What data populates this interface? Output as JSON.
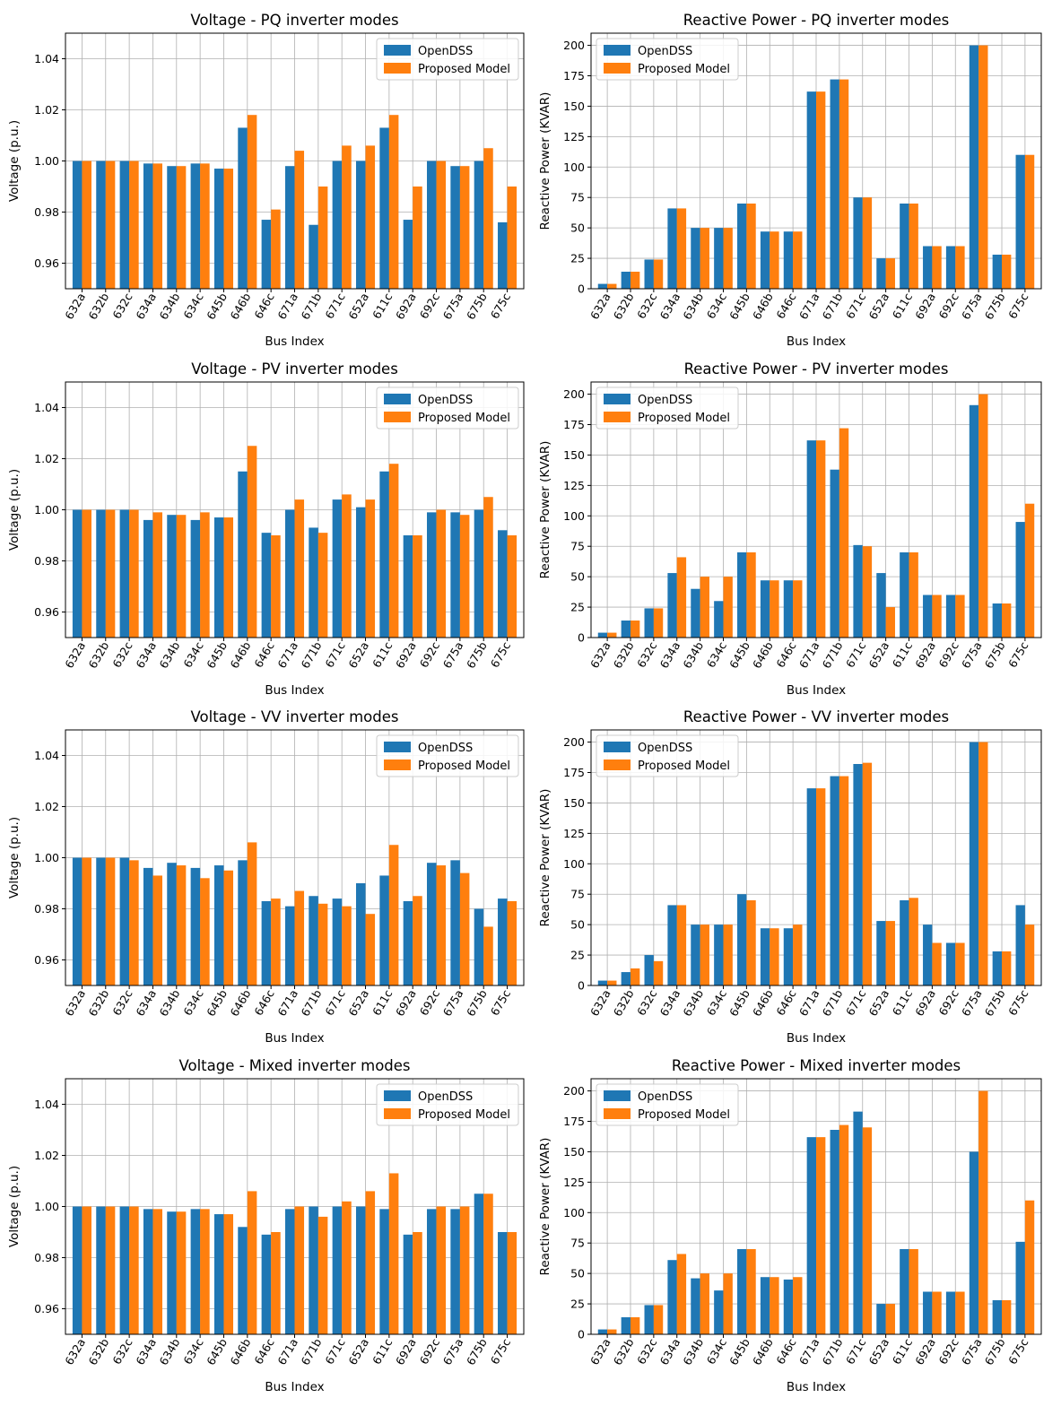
{
  "colors": {
    "opendss": "#1f77b4",
    "proposed": "#ff7f0e"
  },
  "chart_data": [
    {
      "type": "bar",
      "title": "Voltage - PQ inverter modes",
      "xlabel": "Bus Index",
      "ylabel": "Voltage (p.u.)",
      "ylim": [
        0.95,
        1.05
      ],
      "yticks": [
        "0.96",
        "0.98",
        "1.00",
        "1.02",
        "1.04"
      ],
      "grid": true,
      "legend": "upper right",
      "categories": [
        "632a",
        "632b",
        "632c",
        "634a",
        "634b",
        "634c",
        "645b",
        "646b",
        "646c",
        "671a",
        "671b",
        "671c",
        "652a",
        "611c",
        "692a",
        "692c",
        "675a",
        "675b",
        "675c"
      ],
      "series": [
        {
          "name": "OpenDSS",
          "values": [
            1.0,
            1.0,
            1.0,
            0.999,
            0.998,
            0.999,
            0.997,
            1.013,
            0.977,
            0.998,
            0.975,
            1.0,
            1.0,
            1.013,
            0.977,
            1.0,
            0.998,
            1.0,
            0.976
          ]
        },
        {
          "name": "Proposed Model",
          "values": [
            1.0,
            1.0,
            1.0,
            0.999,
            0.998,
            0.999,
            0.997,
            1.018,
            0.981,
            1.004,
            0.99,
            1.006,
            1.006,
            1.018,
            0.99,
            1.0,
            0.998,
            1.005,
            0.99
          ]
        }
      ]
    },
    {
      "type": "bar",
      "title": "Reactive Power - PQ inverter modes",
      "xlabel": "Bus Index",
      "ylabel": "Reactive Power (KVAR)",
      "ylim": [
        0,
        210
      ],
      "yticks": [
        "0",
        "25",
        "50",
        "75",
        "100",
        "125",
        "150",
        "175",
        "200"
      ],
      "grid": true,
      "legend": "upper left",
      "categories": [
        "632a",
        "632b",
        "632c",
        "634a",
        "634b",
        "634c",
        "645b",
        "646b",
        "646c",
        "671a",
        "671b",
        "671c",
        "652a",
        "611c",
        "692a",
        "692c",
        "675a",
        "675b",
        "675c"
      ],
      "series": [
        {
          "name": "OpenDSS",
          "values": [
            4,
            14,
            24,
            66,
            50,
            50,
            70,
            47,
            47,
            162,
            172,
            75,
            25,
            70,
            35,
            35,
            200,
            28,
            110
          ]
        },
        {
          "name": "Proposed Model",
          "values": [
            4,
            14,
            24,
            66,
            50,
            50,
            70,
            47,
            47,
            162,
            172,
            75,
            25,
            70,
            35,
            35,
            200,
            28,
            110
          ]
        }
      ]
    },
    {
      "type": "bar",
      "title": "Voltage - PV inverter modes",
      "xlabel": "Bus Index",
      "ylabel": "Voltage (p.u.)",
      "ylim": [
        0.95,
        1.05
      ],
      "yticks": [
        "0.96",
        "0.98",
        "1.00",
        "1.02",
        "1.04"
      ],
      "grid": true,
      "legend": "upper right",
      "categories": [
        "632a",
        "632b",
        "632c",
        "634a",
        "634b",
        "634c",
        "645b",
        "646b",
        "646c",
        "671a",
        "671b",
        "671c",
        "652a",
        "611c",
        "692a",
        "692c",
        "675a",
        "675b",
        "675c"
      ],
      "series": [
        {
          "name": "OpenDSS",
          "values": [
            1.0,
            1.0,
            1.0,
            0.996,
            0.998,
            0.996,
            0.997,
            1.015,
            0.991,
            1.0,
            0.993,
            1.004,
            1.001,
            1.015,
            0.99,
            0.999,
            0.999,
            1.0,
            0.992
          ]
        },
        {
          "name": "Proposed Model",
          "values": [
            1.0,
            1.0,
            1.0,
            0.999,
            0.998,
            0.999,
            0.997,
            1.025,
            0.99,
            1.004,
            0.991,
            1.006,
            1.004,
            1.018,
            0.99,
            1.0,
            0.998,
            1.005,
            0.99
          ]
        }
      ]
    },
    {
      "type": "bar",
      "title": "Reactive Power - PV inverter modes",
      "xlabel": "Bus Index",
      "ylabel": "Reactive Power (KVAR)",
      "ylim": [
        0,
        210
      ],
      "yticks": [
        "0",
        "25",
        "50",
        "75",
        "100",
        "125",
        "150",
        "175",
        "200"
      ],
      "grid": true,
      "legend": "upper left",
      "categories": [
        "632a",
        "632b",
        "632c",
        "634a",
        "634b",
        "634c",
        "645b",
        "646b",
        "646c",
        "671a",
        "671b",
        "671c",
        "652a",
        "611c",
        "692a",
        "692c",
        "675a",
        "675b",
        "675c"
      ],
      "series": [
        {
          "name": "OpenDSS",
          "values": [
            4,
            14,
            24,
            53,
            40,
            30,
            70,
            47,
            47,
            162,
            138,
            76,
            53,
            70,
            35,
            35,
            191,
            28,
            95
          ]
        },
        {
          "name": "Proposed Model",
          "values": [
            4,
            14,
            24,
            66,
            50,
            50,
            70,
            47,
            47,
            162,
            172,
            75,
            25,
            70,
            35,
            35,
            200,
            28,
            110
          ]
        }
      ]
    },
    {
      "type": "bar",
      "title": "Voltage - VV inverter modes",
      "xlabel": "Bus Index",
      "ylabel": "Voltage (p.u.)",
      "ylim": [
        0.95,
        1.05
      ],
      "yticks": [
        "0.96",
        "0.98",
        "1.00",
        "1.02",
        "1.04"
      ],
      "grid": true,
      "legend": "upper right",
      "categories": [
        "632a",
        "632b",
        "632c",
        "634a",
        "634b",
        "634c",
        "645b",
        "646b",
        "646c",
        "671a",
        "671b",
        "671c",
        "652a",
        "611c",
        "692a",
        "692c",
        "675a",
        "675b",
        "675c"
      ],
      "series": [
        {
          "name": "OpenDSS",
          "values": [
            1.0,
            1.0,
            1.0,
            0.996,
            0.998,
            0.996,
            0.997,
            0.999,
            0.983,
            0.981,
            0.985,
            0.984,
            0.99,
            0.993,
            0.983,
            0.998,
            0.999,
            0.98,
            0.984
          ]
        },
        {
          "name": "Proposed Model",
          "values": [
            1.0,
            1.0,
            0.999,
            0.993,
            0.997,
            0.992,
            0.995,
            1.006,
            0.984,
            0.987,
            0.982,
            0.981,
            0.978,
            1.005,
            0.985,
            0.997,
            0.994,
            0.973,
            0.983
          ]
        }
      ]
    },
    {
      "type": "bar",
      "title": "Reactive Power - VV inverter modes",
      "xlabel": "Bus Index",
      "ylabel": "Reactive Power (KVAR)",
      "ylim": [
        0,
        210
      ],
      "yticks": [
        "0",
        "25",
        "50",
        "75",
        "100",
        "125",
        "150",
        "175",
        "200"
      ],
      "grid": true,
      "legend": "upper left",
      "categories": [
        "632a",
        "632b",
        "632c",
        "634a",
        "634b",
        "634c",
        "645b",
        "646b",
        "646c",
        "671a",
        "671b",
        "671c",
        "652a",
        "611c",
        "692a",
        "692c",
        "675a",
        "675b",
        "675c"
      ],
      "series": [
        {
          "name": "OpenDSS",
          "values": [
            4,
            11,
            25,
            66,
            50,
            50,
            75,
            47,
            47,
            162,
            172,
            182,
            53,
            70,
            50,
            35,
            200,
            28,
            66
          ]
        },
        {
          "name": "Proposed Model",
          "values": [
            4,
            14,
            20,
            66,
            50,
            50,
            70,
            47,
            50,
            162,
            172,
            183,
            53,
            72,
            35,
            35,
            200,
            28,
            50
          ]
        }
      ]
    },
    {
      "type": "bar",
      "title": "Voltage - Mixed inverter modes",
      "xlabel": "Bus Index",
      "ylabel": "Voltage (p.u.)",
      "ylim": [
        0.95,
        1.05
      ],
      "yticks": [
        "0.96",
        "0.98",
        "1.00",
        "1.02",
        "1.04"
      ],
      "grid": true,
      "legend": "upper right",
      "categories": [
        "632a",
        "632b",
        "632c",
        "634a",
        "634b",
        "634c",
        "645b",
        "646b",
        "646c",
        "671a",
        "671b",
        "671c",
        "652a",
        "611c",
        "692a",
        "692c",
        "675a",
        "675b",
        "675c"
      ],
      "series": [
        {
          "name": "OpenDSS",
          "values": [
            1.0,
            1.0,
            1.0,
            0.999,
            0.998,
            0.999,
            0.997,
            0.992,
            0.989,
            0.999,
            1.0,
            1.0,
            1.0,
            0.999,
            0.989,
            0.999,
            0.999,
            1.005,
            0.99
          ]
        },
        {
          "name": "Proposed Model",
          "values": [
            1.0,
            1.0,
            1.0,
            0.999,
            0.998,
            0.999,
            0.997,
            1.006,
            0.99,
            1.0,
            0.996,
            1.002,
            1.006,
            1.013,
            0.99,
            1.0,
            1.0,
            1.005,
            0.99
          ]
        }
      ]
    },
    {
      "type": "bar",
      "title": "Reactive Power - Mixed inverter modes",
      "xlabel": "Bus Index",
      "ylabel": "Reactive Power (KVAR)",
      "ylim": [
        0,
        210
      ],
      "yticks": [
        "0",
        "25",
        "50",
        "75",
        "100",
        "125",
        "150",
        "175",
        "200"
      ],
      "grid": true,
      "legend": "upper left",
      "categories": [
        "632a",
        "632b",
        "632c",
        "634a",
        "634b",
        "634c",
        "645b",
        "646b",
        "646c",
        "671a",
        "671b",
        "671c",
        "652a",
        "611c",
        "692a",
        "692c",
        "675a",
        "675b",
        "675c"
      ],
      "series": [
        {
          "name": "OpenDSS",
          "values": [
            4,
            14,
            24,
            61,
            46,
            36,
            70,
            47,
            45,
            162,
            168,
            183,
            25,
            70,
            35,
            35,
            150,
            28,
            76
          ]
        },
        {
          "name": "Proposed Model",
          "values": [
            4,
            14,
            24,
            66,
            50,
            50,
            70,
            47,
            47,
            162,
            172,
            170,
            25,
            70,
            35,
            35,
            200,
            28,
            110
          ]
        }
      ]
    }
  ]
}
